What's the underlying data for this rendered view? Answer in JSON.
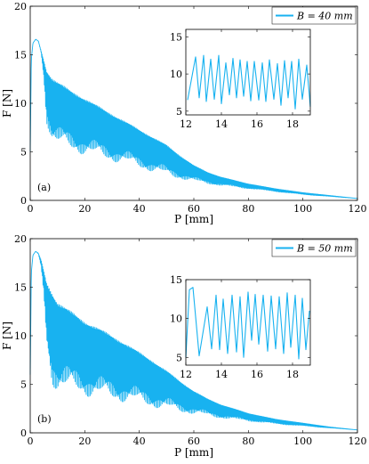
{
  "colors": {
    "series": "#18b2f0",
    "axis": "#000000",
    "background": "#ffffff"
  },
  "chart_data": [
    {
      "type": "line",
      "panel_label": "(a)",
      "xlabel": "P [mm]",
      "ylabel": "F [N]",
      "xlim": [
        0,
        120
      ],
      "ylim": [
        0,
        20
      ],
      "xticks": [
        "0",
        "20",
        "40",
        "60",
        "80",
        "100",
        "120"
      ],
      "yticks": [
        "0",
        "5",
        "10",
        "15",
        "20"
      ],
      "legend": {
        "label": "B = 40 mm",
        "placement": "top-right"
      },
      "grid": false,
      "series": [
        {
          "envelope_upper": [
            [
              0,
              5
            ],
            [
              0.4,
              14.5
            ],
            [
              1,
              16.2
            ],
            [
              2,
              16.6
            ],
            [
              3,
              16.4
            ],
            [
              4,
              15.4
            ],
            [
              6,
              13.4
            ],
            [
              8,
              12.6
            ],
            [
              10,
              12.2
            ],
            [
              15,
              11.3
            ],
            [
              20,
              10.5
            ],
            [
              25,
              9.7
            ],
            [
              30,
              8.9
            ],
            [
              35,
              8.1
            ],
            [
              40,
              7.3
            ],
            [
              45,
              6.5
            ],
            [
              50,
              5.7
            ],
            [
              55,
              4.6
            ],
            [
              60,
              3.6
            ],
            [
              65,
              2.9
            ],
            [
              70,
              2.4
            ],
            [
              80,
              1.7
            ],
            [
              90,
              1.2
            ],
            [
              100,
              0.8
            ],
            [
              110,
              0.5
            ],
            [
              120,
              0.2
            ]
          ],
          "envelope_lower": [
            [
              0,
              5
            ],
            [
              0.4,
              14.5
            ],
            [
              1,
              16.2
            ],
            [
              2,
              16.6
            ],
            [
              3,
              16.4
            ],
            [
              4,
              15.2
            ],
            [
              5,
              12.5
            ],
            [
              6,
              8
            ],
            [
              8,
              6
            ],
            [
              10,
              5.5
            ],
            [
              15,
              5
            ],
            [
              20,
              4.7
            ],
            [
              25,
              4.3
            ],
            [
              30,
              4
            ],
            [
              35,
              3.7
            ],
            [
              40,
              3.3
            ],
            [
              45,
              2.9
            ],
            [
              50,
              2.5
            ],
            [
              55,
              2.2
            ],
            [
              60,
              1.9
            ],
            [
              65,
              1.7
            ],
            [
              70,
              1.5
            ],
            [
              80,
              1.2
            ],
            [
              90,
              0.9
            ],
            [
              100,
              0.6
            ],
            [
              110,
              0.4
            ],
            [
              120,
              0.2
            ]
          ]
        }
      ],
      "inset": {
        "xlim": [
          12,
          19
        ],
        "ylim": [
          4.5,
          16
        ],
        "xticks": [
          "12",
          "14",
          "16",
          "18"
        ],
        "yticks": [
          "5",
          "10",
          "15"
        ],
        "series": [
          {
            "peaks": [
              [
                12.1,
                6.5
              ],
              [
                12.55,
                12.3
              ],
              [
                13.0,
                12.5
              ],
              [
                13.4,
                12
              ],
              [
                13.85,
                12.5
              ],
              [
                14.25,
                11.5
              ],
              [
                14.65,
                12.1
              ],
              [
                15.05,
                11.9
              ],
              [
                15.45,
                11.7
              ],
              [
                15.85,
                11.7
              ],
              [
                16.3,
                11.5
              ],
              [
                16.7,
                11.9
              ],
              [
                17.15,
                11.4
              ],
              [
                17.55,
                11.8
              ],
              [
                17.95,
                11.7
              ],
              [
                18.35,
                12
              ],
              [
                18.8,
                11.2
              ]
            ],
            "troughs": [
              [
                12.75,
                6.8
              ],
              [
                13.15,
                6.3
              ],
              [
                13.6,
                6.6
              ],
              [
                14.0,
                6.0
              ],
              [
                14.45,
                7.2
              ],
              [
                14.85,
                6.8
              ],
              [
                15.25,
                7.0
              ],
              [
                15.65,
                6.4
              ],
              [
                16.1,
                6.5
              ],
              [
                16.5,
                6.3
              ],
              [
                16.95,
                6.6
              ],
              [
                17.35,
                5.8
              ],
              [
                17.75,
                6.8
              ],
              [
                18.15,
                5.3
              ],
              [
                18.55,
                6.6
              ],
              [
                19.0,
                5.6
              ]
            ]
          }
        ]
      }
    },
    {
      "type": "line",
      "panel_label": "(b)",
      "xlabel": "P [mm]",
      "ylabel": "F [N]",
      "xlim": [
        0,
        120
      ],
      "ylim": [
        0,
        20
      ],
      "xticks": [
        "0",
        "20",
        "40",
        "60",
        "80",
        "100",
        "120"
      ],
      "yticks": [
        "0",
        "5",
        "10",
        "15",
        "20"
      ],
      "legend": {
        "label": "B = 50 mm",
        "placement": "top-right"
      },
      "grid": false,
      "series": [
        {
          "envelope_upper": [
            [
              0,
              6
            ],
            [
              0.4,
              16.5
            ],
            [
              1,
              18.3
            ],
            [
              2,
              18.7
            ],
            [
              3,
              18.5
            ],
            [
              4,
              17.8
            ],
            [
              6,
              15.5
            ],
            [
              8,
              14.5
            ],
            [
              10,
              13.5
            ],
            [
              15,
              12.5
            ],
            [
              20,
              11.5
            ],
            [
              25,
              10.8
            ],
            [
              30,
              10
            ],
            [
              35,
              9.2
            ],
            [
              40,
              8.3
            ],
            [
              45,
              7.4
            ],
            [
              50,
              6.4
            ],
            [
              55,
              5.3
            ],
            [
              60,
              4.3
            ],
            [
              65,
              3.5
            ],
            [
              70,
              2.9
            ],
            [
              80,
              2
            ],
            [
              90,
              1.4
            ],
            [
              100,
              1
            ],
            [
              110,
              0.6
            ],
            [
              120,
              0.3
            ]
          ],
          "envelope_lower": [
            [
              0,
              6
            ],
            [
              0.4,
              16.5
            ],
            [
              1,
              18.3
            ],
            [
              2,
              18.7
            ],
            [
              3,
              18.4
            ],
            [
              4,
              17
            ],
            [
              5,
              14
            ],
            [
              6,
              9
            ],
            [
              8,
              5
            ],
            [
              10,
              4.2
            ],
            [
              15,
              4
            ],
            [
              20,
              3.8
            ],
            [
              25,
              3.5
            ],
            [
              30,
              3.3
            ],
            [
              35,
              3.1
            ],
            [
              40,
              2.9
            ],
            [
              45,
              2.6
            ],
            [
              50,
              2.3
            ],
            [
              55,
              2.1
            ],
            [
              60,
              1.9
            ],
            [
              65,
              1.7
            ],
            [
              70,
              1.5
            ],
            [
              80,
              1.2
            ],
            [
              90,
              0.9
            ],
            [
              100,
              0.7
            ],
            [
              110,
              0.5
            ],
            [
              120,
              0.3
            ]
          ]
        }
      ],
      "inset": {
        "xlim": [
          12,
          19
        ],
        "ylim": [
          4,
          15
        ],
        "xticks": [
          "12",
          "14",
          "16",
          "18"
        ],
        "yticks": [
          "5",
          "10",
          "15"
        ],
        "series": [
          {
            "peaks": [
              [
                12.2,
                13.7
              ],
              [
                12.4,
                14
              ],
              [
                13.2,
                11.5
              ],
              [
                13.7,
                13
              ],
              [
                14.1,
                12.5
              ],
              [
                14.6,
                13
              ],
              [
                15.05,
                12.8
              ],
              [
                15.5,
                13.4
              ],
              [
                15.9,
                13.1
              ],
              [
                16.35,
                13
              ],
              [
                16.8,
                12.9
              ],
              [
                17.25,
                12.8
              ],
              [
                17.7,
                13.3
              ],
              [
                18.15,
                13
              ],
              [
                18.55,
                12.6
              ],
              [
                18.95,
                11
              ]
            ],
            "troughs": [
              [
                12.0,
                5
              ],
              [
                12.75,
                5.2
              ],
              [
                13.45,
                6.1
              ],
              [
                13.9,
                6
              ],
              [
                14.35,
                5.5
              ],
              [
                14.85,
                5.7
              ],
              [
                15.25,
                5
              ],
              [
                15.7,
                7.2
              ],
              [
                16.1,
                6.7
              ],
              [
                16.6,
                5.8
              ],
              [
                17.05,
                6.1
              ],
              [
                17.5,
                5.5
              ],
              [
                17.9,
                6.3
              ],
              [
                18.35,
                4.8
              ],
              [
                18.75,
                6
              ]
            ]
          }
        ]
      }
    }
  ]
}
